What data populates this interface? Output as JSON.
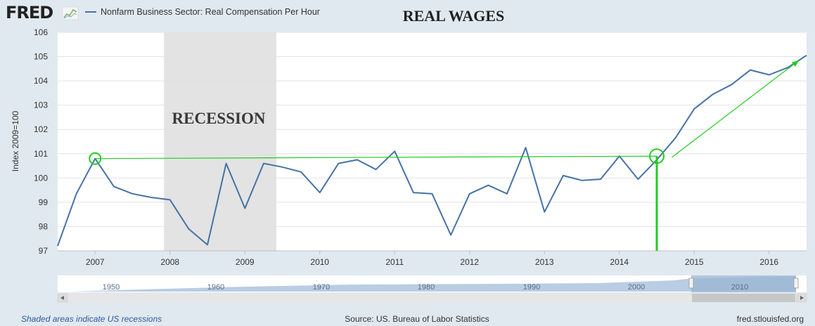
{
  "header": {
    "logo_text": "FRED",
    "legend_label": "Nonfarm Business Sector: Real Compensation Per Hour",
    "series_color": "#4572a7"
  },
  "annotations": {
    "title": "REAL WAGES",
    "recession_label": "RECESSION",
    "annotation_color": "#22cc22"
  },
  "footer": {
    "left": "Shaded areas indicate US recessions",
    "source": "Source: US. Bureau of Labor Statistics",
    "site": "fred.stlouisfed.org"
  },
  "navigator": {
    "labels": [
      "1950",
      "1960",
      "1970",
      "1980",
      "1990",
      "2000",
      "2010"
    ],
    "scroll_left_icon": "arrow-left-icon",
    "scroll_right_icon": "arrow-right-icon"
  },
  "chart_data": {
    "type": "line",
    "title": "",
    "xlabel": "",
    "ylabel": "Index 2009=100",
    "xlim": [
      2006.5,
      2016.5
    ],
    "ylim": [
      97,
      106
    ],
    "x_ticks": [
      2007,
      2008,
      2009,
      2010,
      2011,
      2012,
      2013,
      2014,
      2015,
      2016
    ],
    "y_ticks": [
      97,
      98,
      99,
      100,
      101,
      102,
      103,
      104,
      105,
      106
    ],
    "grid": true,
    "recession_band": [
      2007.92,
      2009.42
    ],
    "series": [
      {
        "name": "Nonfarm Business Sector: Real Compensation Per Hour",
        "x": [
          2006.5,
          2006.75,
          2007.0,
          2007.25,
          2007.5,
          2007.75,
          2008.0,
          2008.25,
          2008.5,
          2008.75,
          2009.0,
          2009.25,
          2009.5,
          2009.75,
          2010.0,
          2010.25,
          2010.5,
          2010.75,
          2011.0,
          2011.25,
          2011.5,
          2011.75,
          2012.0,
          2012.25,
          2012.5,
          2012.75,
          2013.0,
          2013.25,
          2013.5,
          2013.75,
          2014.0,
          2014.25,
          2014.5,
          2014.75,
          2015.0,
          2015.25,
          2015.5,
          2015.75,
          2016.0,
          2016.25,
          2016.5
        ],
        "y": [
          97.2,
          99.35,
          100.8,
          99.65,
          99.35,
          99.2,
          99.1,
          97.9,
          97.25,
          100.6,
          98.75,
          100.6,
          100.45,
          100.25,
          99.4,
          100.6,
          100.75,
          100.35,
          101.1,
          99.4,
          99.35,
          97.65,
          99.35,
          99.7,
          99.35,
          101.25,
          98.6,
          100.1,
          99.9,
          99.95,
          100.9,
          99.95,
          100.75,
          101.65,
          102.85,
          103.45,
          103.85,
          104.45,
          104.25,
          104.55,
          105.05
        ]
      }
    ],
    "annotation_lines": {
      "flat_from": {
        "x": 2007.0,
        "y": 100.8
      },
      "flat_to": {
        "x": 2014.5,
        "y": 100.9
      },
      "arrow_from": {
        "x": 2014.7,
        "y": 100.85
      },
      "arrow_to": {
        "x": 2016.4,
        "y": 104.85
      },
      "vertical_at": 2014.5
    }
  }
}
